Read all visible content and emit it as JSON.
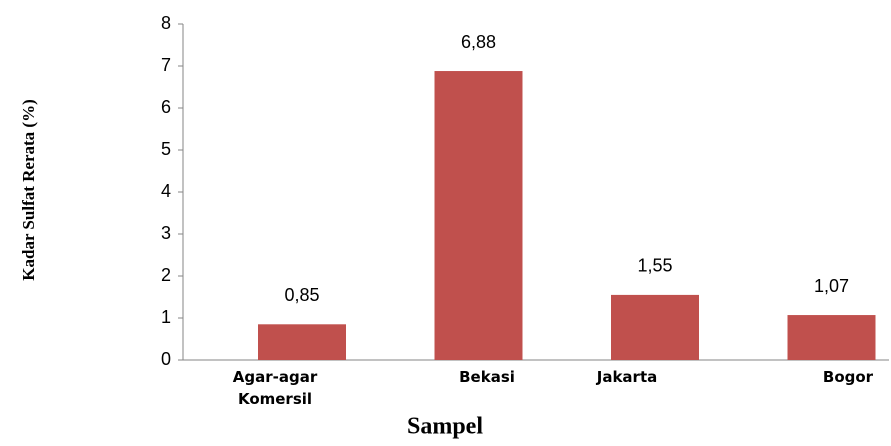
{
  "chart_data": {
    "type": "bar",
    "categories": [
      "Agar-agar Komersil",
      "Bekasi",
      "Jakarta",
      "Bogor"
    ],
    "values": [
      0.85,
      6.88,
      1.55,
      1.07
    ],
    "value_labels": [
      "0,85",
      "6,88",
      "1,55",
      "1,07"
    ],
    "color": "#c0504d",
    "xlabel": "Sampel",
    "ylabel": "Kadar Sulfat Rerata (%)",
    "ylim": [
      0,
      8
    ],
    "yticks": [
      0,
      1,
      2,
      3,
      4,
      5,
      6,
      7,
      8
    ],
    "grid": false
  }
}
